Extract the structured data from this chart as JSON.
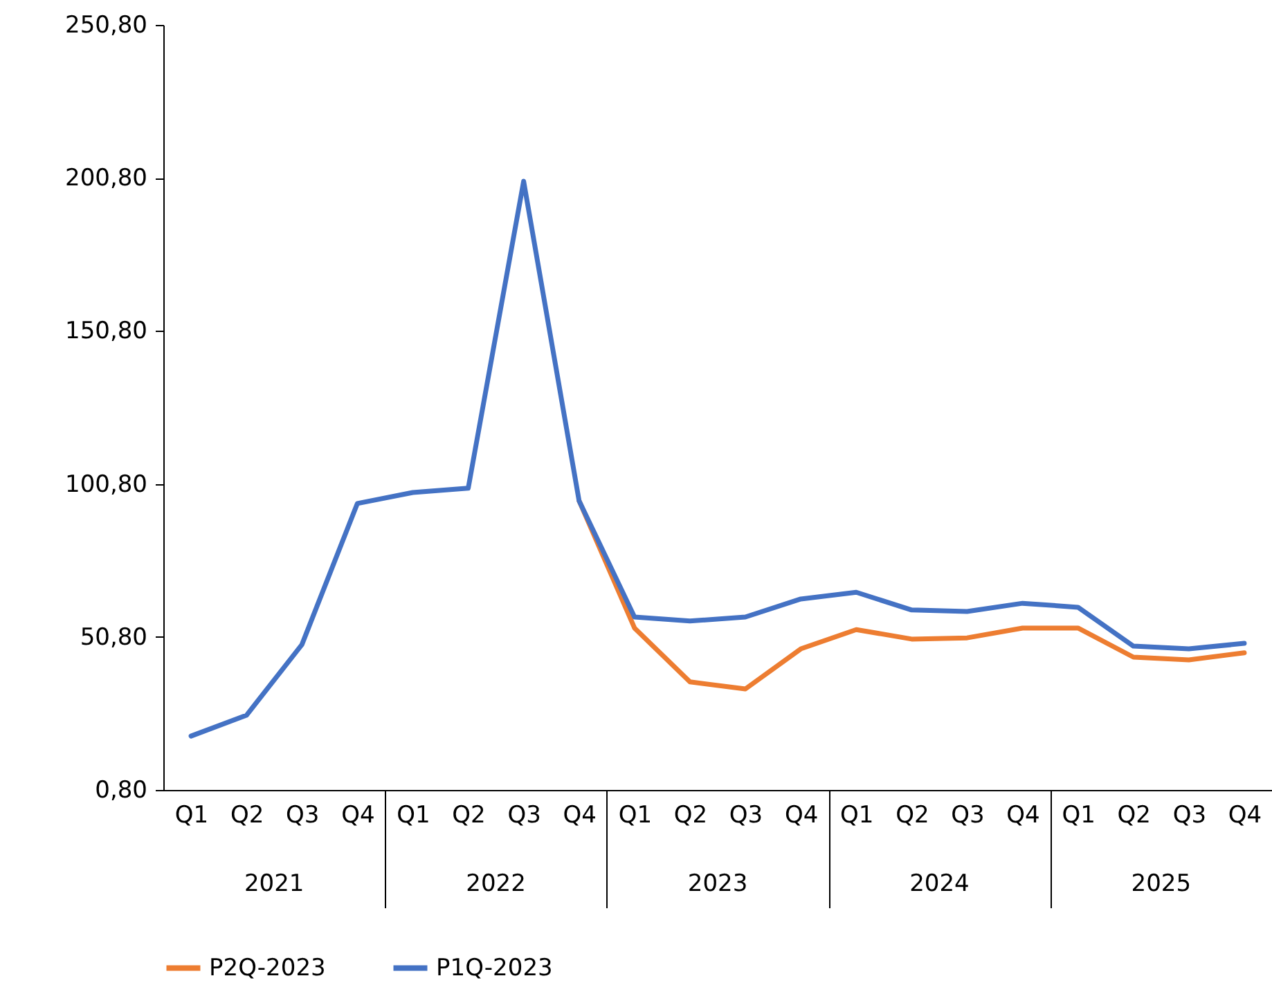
{
  "chart_data": {
    "type": "line",
    "categories": [
      "Q1",
      "Q2",
      "Q3",
      "Q4",
      "Q1",
      "Q2",
      "Q3",
      "Q4",
      "Q1",
      "Q2",
      "Q3",
      "Q4",
      "Q1",
      "Q2",
      "Q3",
      "Q4",
      "Q1",
      "Q2",
      "Q3",
      "Q4"
    ],
    "series": [
      {
        "name": "P2Q-2023",
        "color": "#ed7d31",
        "values": [
          null,
          null,
          null,
          null,
          null,
          null,
          null,
          95.3,
          53.7,
          36.1,
          33.8,
          46.9,
          53.2,
          50.1,
          50.5,
          53.7,
          53.7,
          44.2,
          43.3,
          45.6
        ]
      },
      {
        "name": "P1Q-2023",
        "color": "#4472c4",
        "values": [
          18.4,
          25.2,
          48.3,
          94.4,
          98.0,
          99.4,
          199.7,
          95.3,
          57.3,
          56.0,
          57.3,
          63.2,
          65.4,
          59.6,
          59.1,
          61.8,
          60.5,
          47.8,
          46.9,
          48.7
        ]
      }
    ],
    "ylim": [
      0.8,
      250.8
    ],
    "yticks": [
      {
        "value": 0.8,
        "label": "0,80"
      },
      {
        "value": 50.8,
        "label": "50,80"
      },
      {
        "value": 100.8,
        "label": "100,80"
      },
      {
        "value": 150.8,
        "label": "150,80"
      },
      {
        "value": 200.8,
        "label": "200,80"
      },
      {
        "value": 250.8,
        "label": "250,80"
      }
    ],
    "annotations": [
      "2021",
      "2022",
      "2023",
      "2024",
      "2025"
    ],
    "legend": "bottom"
  }
}
